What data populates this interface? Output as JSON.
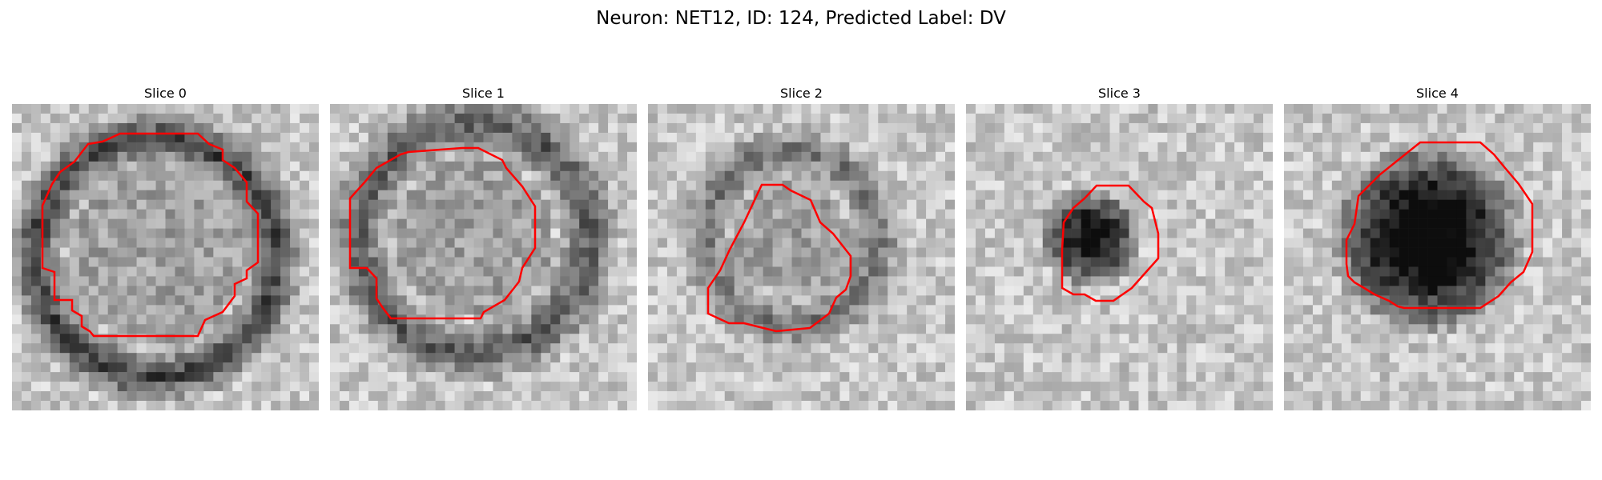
{
  "title": "Neuron: NET12, ID: 124, Predicted Label: DV",
  "panels": [
    {
      "label": "Slice 0"
    },
    {
      "label": "Slice 1"
    },
    {
      "label": "Slice 2"
    },
    {
      "label": "Slice 3"
    },
    {
      "label": "Slice 4"
    }
  ],
  "colors": {
    "contour": "#ff0000",
    "background": "#ffffff"
  }
}
